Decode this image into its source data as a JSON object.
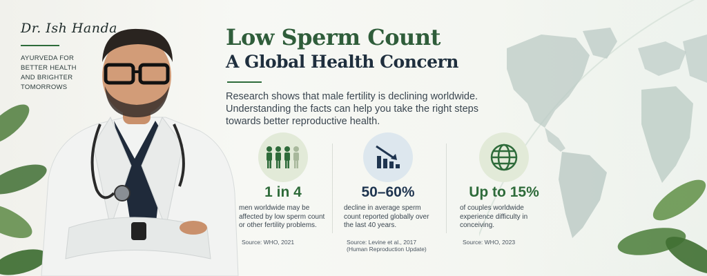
{
  "brand": {
    "name": "Dr. Ish Handa",
    "tagline": [
      "AYURVEDA FOR",
      "BETTER HEALTH",
      "AND BRIGHTER",
      "TOMORROWS"
    ]
  },
  "headline": {
    "title": "Low Sperm Count",
    "subtitle": "A Global Health Concern"
  },
  "intro": "Research shows that male fertility is declining worldwide. Understanding the facts can help you take the right steps towards better reproductive health.",
  "stats": [
    {
      "icon": "people-icon",
      "value": "1 in 4",
      "description": "men worldwide may be affected by low sperm count or other fertility problems.",
      "source": "Source: WHO, 2021",
      "color": "#2e6b3a"
    },
    {
      "icon": "declining-bar-chart-icon",
      "value": "50–60%",
      "description": "decline in average sperm count reported globally over the last 40 years.",
      "source": "Source: Levine et al., 2017 (Human Reproduction Update)",
      "color": "#1f3550"
    },
    {
      "icon": "globe-icon",
      "value": "Up to 15%",
      "description": "of couples worldwide experience difficulty in conceiving.",
      "source": "Source: WHO, 2023",
      "color": "#2e6b3a"
    }
  ],
  "colors": {
    "green": "#2e6b3a",
    "navy": "#1f3550",
    "green_badge_bg": "#e2ead8",
    "blue_badge_bg": "#dde7ee"
  }
}
